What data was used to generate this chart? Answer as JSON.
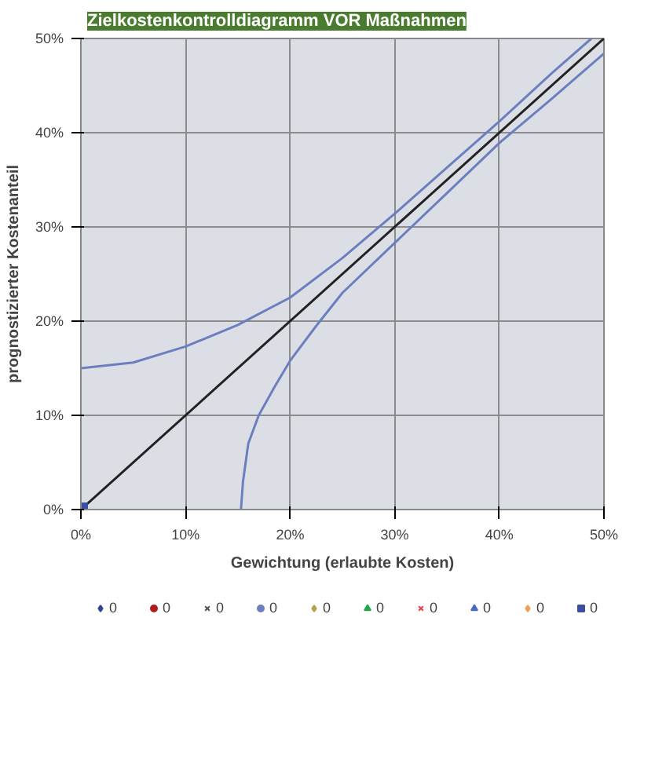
{
  "chart_data": {
    "type": "scatter",
    "title": "Zielkostenkontrolldiagramm VOR Maßnahmen",
    "xlabel": "Gewichtung (erlaubte Kosten)",
    "ylabel": "prognostizierter Kostenanteil",
    "xlim": [
      0,
      50
    ],
    "ylim": [
      0,
      50
    ],
    "xticks": [
      {
        "value": 0,
        "label": "0%"
      },
      {
        "value": 10,
        "label": "10%"
      },
      {
        "value": 20,
        "label": "20%"
      },
      {
        "value": 30,
        "label": "30%"
      },
      {
        "value": 40,
        "label": "40%"
      },
      {
        "value": 50,
        "label": "50%"
      }
    ],
    "yticks": [
      {
        "value": 0,
        "label": "0%"
      },
      {
        "value": 10,
        "label": "10%"
      },
      {
        "value": 20,
        "label": "20%"
      },
      {
        "value": 30,
        "label": "30%"
      },
      {
        "value": 40,
        "label": "40%"
      },
      {
        "value": 50,
        "label": "50%"
      }
    ],
    "grid": true,
    "legend": "bottom",
    "series": [
      {
        "type": "line",
        "color": "#6b7fbf",
        "marker": "none",
        "x": [
          0,
          5,
          10,
          15,
          20,
          25,
          30,
          35,
          40,
          45,
          48.8
        ],
        "values": [
          15,
          15.6,
          17.3,
          19.6,
          22.5,
          26.7,
          31.4,
          36.3,
          41.2,
          46.3,
          50
        ]
      },
      {
        "type": "line",
        "color": "#6b7fbf",
        "marker": "none",
        "x": [
          15.3,
          15.5,
          16,
          17,
          18.5,
          20,
          22.5,
          25,
          30,
          35,
          40,
          45,
          50
        ],
        "values": [
          0,
          3,
          7,
          10,
          13,
          15.8,
          19.5,
          23,
          28.3,
          33.6,
          38.9,
          43.6,
          48.4
        ]
      },
      {
        "type": "line",
        "color": "#222222",
        "marker": "none",
        "x": [
          0,
          50
        ],
        "values": [
          0,
          50
        ]
      },
      {
        "name": "0",
        "color": "#2e4a8c",
        "marker": "diamond"
      },
      {
        "name": "0",
        "color": "#b01c1c",
        "marker": "circle"
      },
      {
        "name": "0",
        "color": "#555555",
        "marker": "cross"
      },
      {
        "name": "0",
        "color": "#6b7fbf",
        "marker": "circle"
      },
      {
        "name": "0",
        "color": "#b8a04a",
        "marker": "diamond"
      },
      {
        "name": "0",
        "color": "#1fa84a",
        "marker": "triangle"
      },
      {
        "name": "0",
        "color": "#e8404a",
        "marker": "cross"
      },
      {
        "name": "0",
        "color": "#4a6cc0",
        "marker": "triangle"
      },
      {
        "name": "0",
        "color": "#f0a050",
        "marker": "diamond"
      },
      {
        "name": "0",
        "color": "#3b4fa0",
        "marker": "square",
        "x": [
          0
        ],
        "values": [
          0
        ]
      }
    ]
  }
}
